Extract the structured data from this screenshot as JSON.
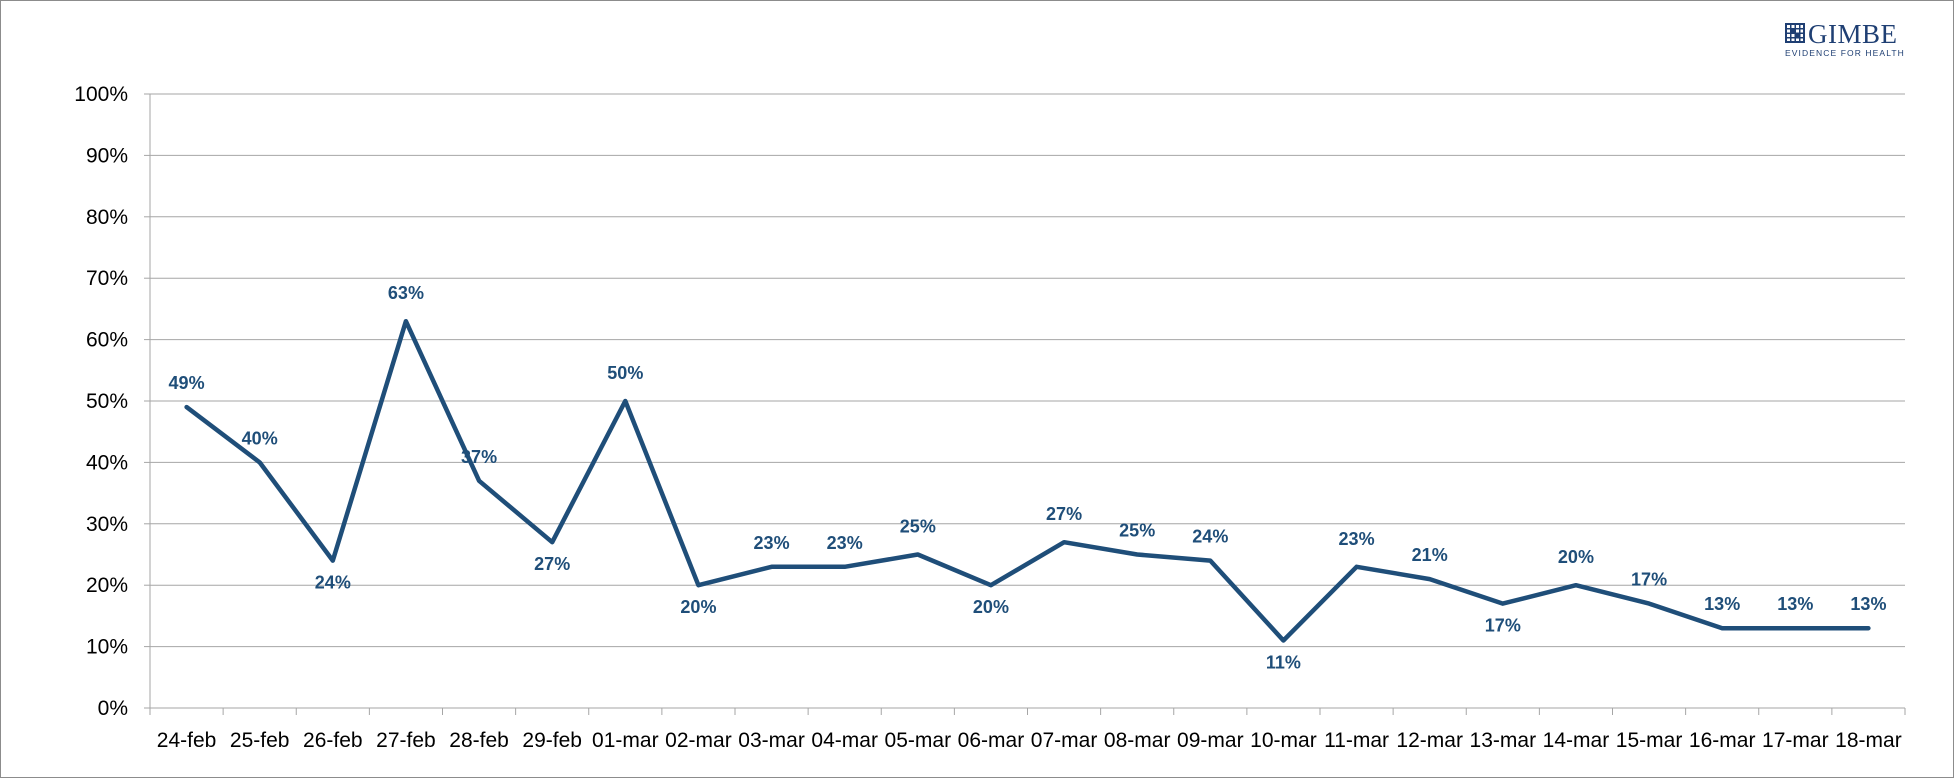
{
  "logo": {
    "name": "GIMBE",
    "tagline": "EVIDENCE FOR HEALTH"
  },
  "colors": {
    "series_line": "#1f4e79",
    "data_label": "#1f4e79",
    "gridline": "#a6a6a6",
    "brand": "#1f3f73"
  },
  "chart_data": {
    "type": "line",
    "title": "",
    "xlabel": "",
    "ylabel": "",
    "ylim": [
      0,
      100
    ],
    "y_unit": "%",
    "y_ticks": [
      "0%",
      "10%",
      "20%",
      "30%",
      "40%",
      "50%",
      "60%",
      "70%",
      "80%",
      "90%",
      "100%"
    ],
    "grid": true,
    "legend": "none",
    "categories": [
      "24-feb",
      "25-feb",
      "26-feb",
      "27-feb",
      "28-feb",
      "29-feb",
      "01-mar",
      "02-mar",
      "03-mar",
      "04-mar",
      "05-mar",
      "06-mar",
      "07-mar",
      "08-mar",
      "09-mar",
      "10-mar",
      "11-mar",
      "12-mar",
      "13-mar",
      "14-mar",
      "15-mar",
      "16-mar",
      "17-mar",
      "18-mar"
    ],
    "series": [
      {
        "values": [
          49,
          40,
          24,
          63,
          37,
          27,
          50,
          20,
          23,
          23,
          25,
          20,
          27,
          25,
          24,
          11,
          23,
          21,
          17,
          20,
          17,
          13,
          13,
          13
        ],
        "labels": [
          "49%",
          "40%",
          "24%",
          "63%",
          "37%",
          "27%",
          "50%",
          "20%",
          "23%",
          "23%",
          "25%",
          "20%",
          "27%",
          "25%",
          "24%",
          "11%",
          "23%",
          "21%",
          "17%",
          "20%",
          "17%",
          "13%",
          "13%",
          "13%"
        ]
      }
    ]
  }
}
